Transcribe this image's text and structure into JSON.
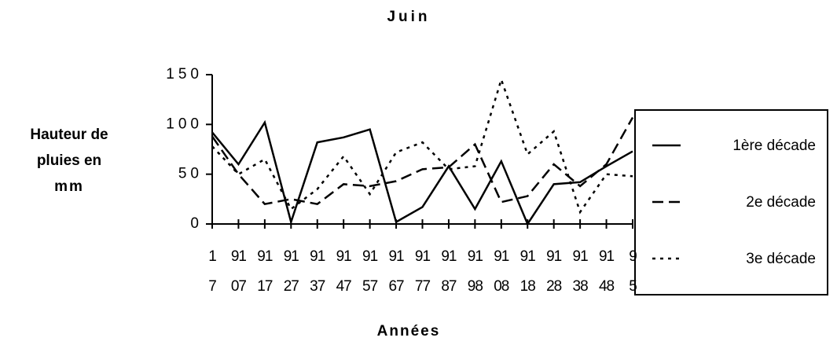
{
  "chart_data": {
    "type": "line",
    "title": "Juin",
    "y_label": [
      "Hauteur de",
      "pluies en",
      "mm"
    ],
    "x_label": "Années",
    "categories": [
      [
        "1",
        "7"
      ],
      [
        "91",
        "07"
      ],
      [
        "91",
        "17"
      ],
      [
        "91",
        "27"
      ],
      [
        "91",
        "37"
      ],
      [
        "91",
        "47"
      ],
      [
        "91",
        "57"
      ],
      [
        "91",
        "67"
      ],
      [
        "91",
        "77"
      ],
      [
        "91",
        "87"
      ],
      [
        "91",
        "98"
      ],
      [
        "91",
        "08"
      ],
      [
        "91",
        "18"
      ],
      [
        "91",
        "28"
      ],
      [
        "91",
        "38"
      ],
      [
        "91",
        "48"
      ],
      [
        "9",
        "5"
      ]
    ],
    "ylim": [
      0,
      150
    ],
    "yticks": [
      0,
      50,
      100,
      150
    ],
    "series": [
      {
        "name": "1ère décade",
        "color": "#000000",
        "dash": "solid",
        "values": [
          92,
          60,
          102,
          2,
          82,
          87,
          95,
          2,
          17,
          58,
          15,
          63,
          0,
          40,
          42,
          58,
          73
        ]
      },
      {
        "name": "2e décade",
        "color": "#000000",
        "dash": "dashed",
        "values": [
          88,
          50,
          20,
          25,
          20,
          40,
          38,
          43,
          55,
          57,
          80,
          22,
          28,
          60,
          38,
          60,
          107
        ]
      },
      {
        "name": "3e décade",
        "color": "#000000",
        "dash": "dotted",
        "values": [
          78,
          50,
          65,
          15,
          35,
          68,
          30,
          72,
          82,
          55,
          58,
          145,
          70,
          93,
          12,
          50,
          48
        ]
      }
    ]
  }
}
